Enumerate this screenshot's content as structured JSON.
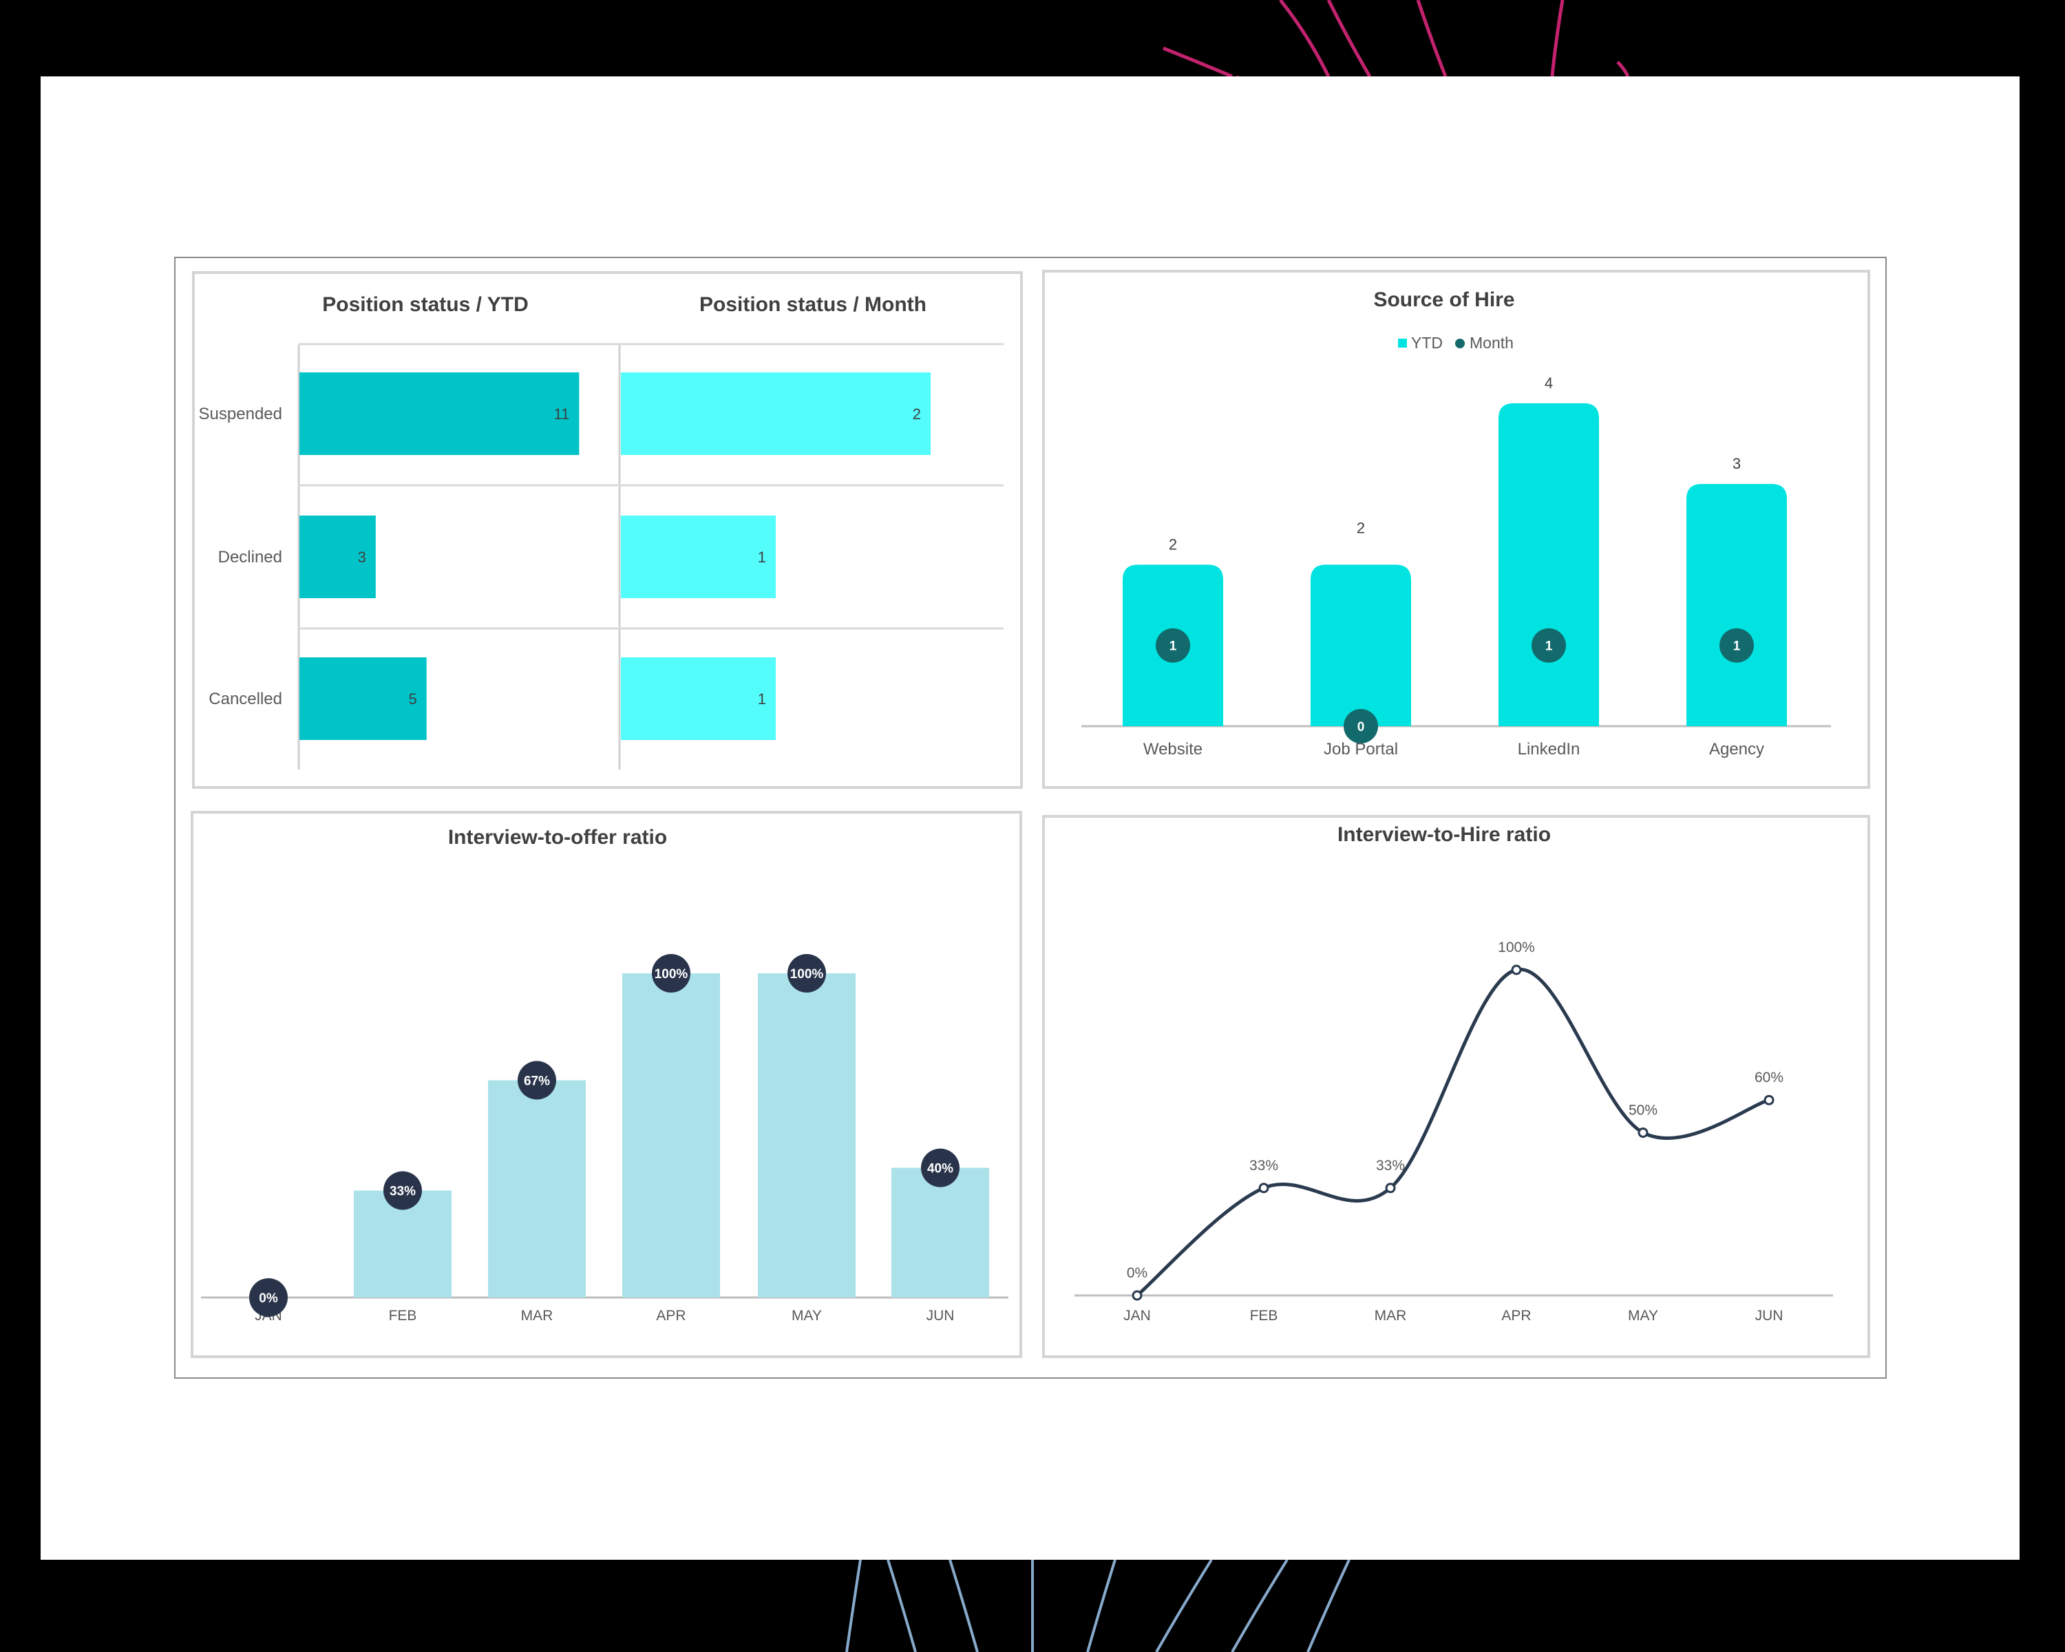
{
  "colors": {
    "ytd_bar": "#00c4c8",
    "month_bar": "#52fdfb",
    "source_bar": "#00e3e0",
    "month_marker": "#136a6c",
    "offer_bar": "#abe1e8",
    "offer_marker": "#29344b",
    "line": "#2a3a4f"
  },
  "chart_data": [
    {
      "type": "bar",
      "orientation": "horizontal",
      "title": "Position status / YTD",
      "categories": [
        "Suspended",
        "Declined",
        "Cancelled"
      ],
      "values": [
        11,
        3,
        5
      ],
      "xlim": [
        0,
        17
      ]
    },
    {
      "type": "bar",
      "orientation": "horizontal",
      "title": "Position status / Month",
      "categories": [
        "Suspended",
        "Declined",
        "Cancelled"
      ],
      "values": [
        2,
        1,
        1
      ],
      "xlim": [
        0,
        2.4
      ]
    },
    {
      "type": "bar",
      "title": "Source of Hire",
      "categories": [
        "Website",
        "Job Portal",
        "LinkedIn",
        "Agency"
      ],
      "series": [
        {
          "name": "YTD",
          "values": [
            2,
            2,
            4,
            3
          ]
        },
        {
          "name": "Month",
          "values": [
            1,
            0,
            1,
            1
          ]
        }
      ],
      "ylim": [
        0,
        4.8
      ],
      "legend": "top"
    },
    {
      "type": "bar",
      "title": "Interview-to-offer ratio",
      "categories": [
        "JAN",
        "FEB",
        "MAR",
        "APR",
        "MAY",
        "JUN"
      ],
      "values": [
        0,
        33,
        67,
        100,
        100,
        40
      ],
      "labels": [
        "0%",
        "33%",
        "67%",
        "100%",
        "100%",
        "40%"
      ],
      "ylim": [
        0,
        100
      ]
    },
    {
      "type": "line",
      "title": "Interview-to-Hire ratio",
      "categories": [
        "JAN",
        "FEB",
        "MAR",
        "APR",
        "MAY",
        "JUN"
      ],
      "values": [
        0,
        33,
        33,
        100,
        50,
        60
      ],
      "labels": [
        "0%",
        "33%",
        "33%",
        "100%",
        "50%",
        "60%"
      ],
      "ylim": [
        0,
        100
      ]
    }
  ]
}
